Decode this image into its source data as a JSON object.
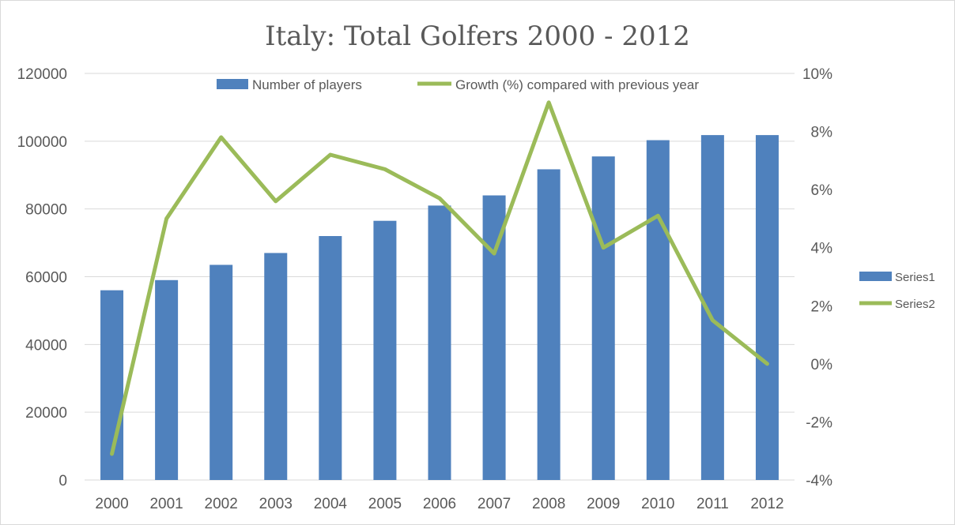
{
  "chart_data": {
    "type": "bar",
    "title": "Italy: Total Golfers 2000 - 2012",
    "categories": [
      "2000",
      "2001",
      "2002",
      "2003",
      "2004",
      "2005",
      "2006",
      "2007",
      "2008",
      "2009",
      "2010",
      "2011",
      "2012"
    ],
    "series": [
      {
        "name": "Number of players",
        "type": "bar",
        "axis": "left",
        "color": "#4f81bd",
        "values": [
          56000,
          59000,
          63500,
          67000,
          72000,
          76500,
          81000,
          84000,
          91700,
          95500,
          100300,
          101800,
          101800
        ]
      },
      {
        "name": "Growth (%) compared with previous year",
        "type": "line",
        "axis": "right",
        "color": "#9bbb59",
        "values": [
          -3.1,
          5.0,
          7.8,
          5.6,
          7.2,
          6.7,
          5.7,
          3.8,
          9.0,
          4.0,
          5.1,
          1.5,
          0.0
        ]
      }
    ],
    "y_left": {
      "ylim": [
        0,
        120000
      ],
      "ticks": [
        "0",
        "20000",
        "40000",
        "60000",
        "80000",
        "100000",
        "120000"
      ]
    },
    "y_right": {
      "ylim": [
        -4,
        10
      ],
      "ticks": [
        "-4%",
        "-2%",
        "0%",
        "2%",
        "4%",
        "6%",
        "8%",
        "10%"
      ]
    },
    "grid": true,
    "legend": {
      "top": [
        "Number of players",
        "Growth (%) compared with previous year"
      ],
      "right": [
        "Series1",
        "Series2"
      ]
    }
  }
}
